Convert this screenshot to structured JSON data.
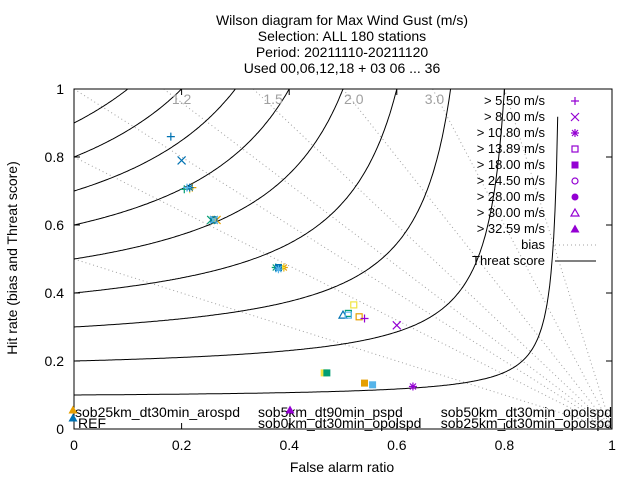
{
  "chart_data": {
    "type": "scatter",
    "title_lines": [
      "Wilson diagram  for Max Wind Gust (m/s)",
      "Selection: ALL    180 stations",
      "Period: 20211110-20211120",
      "Used 00,06,12,18 + 03 06 ... 36"
    ],
    "xlabel": "False alarm ratio",
    "ylabel": "Hit rate (bias and Threat score)",
    "xlim": [
      0,
      1
    ],
    "ylim": [
      0,
      1
    ],
    "x_ticks": [
      "0",
      "0.2",
      "0.4",
      "0.6",
      "0.8",
      "1"
    ],
    "y_ticks": [
      "0",
      "0.2",
      "0.4",
      "0.6",
      "0.8",
      "1"
    ],
    "bias_values": [
      1.2,
      1.5,
      2.0,
      3.0
    ],
    "bias_labels": [
      "1.2",
      "1.5",
      "2.0",
      "3.0"
    ],
    "bias_lines_extra": [
      0.5,
      0.8,
      1.0,
      1.2,
      1.5,
      2.0,
      3.0,
      5.0
    ],
    "threat_scores": [
      0.1,
      0.2,
      0.3,
      0.4,
      0.5,
      0.6,
      0.7,
      0.8,
      0.9
    ],
    "legend": {
      "thresholds": [
        "> 5.50 m/s",
        "> 8.00 m/s",
        "> 10.80 m/s",
        "> 13.89 m/s",
        "> 18.00 m/s",
        "> 24.50 m/s",
        "> 28.00 m/s",
        "> 30.00 m/s",
        "> 32.59 m/s"
      ],
      "threshold_markers": [
        "plus",
        "cross",
        "star",
        "square-open",
        "square",
        "circle-open",
        "circle",
        "triangle-open",
        "triangle"
      ],
      "bias_label": "bias",
      "threat_label": "Threat score"
    },
    "series": [
      {
        "name": "sob25km_dt30min_arospd",
        "color": "#e69f00",
        "points": [
          [
            0.22,
            0.71
          ],
          [
            0.265,
            0.615
          ],
          [
            0.39,
            0.475
          ],
          [
            0.53,
            0.33
          ],
          [
            0.54,
            0.135
          ]
        ]
      },
      {
        "name": "sob5km_dt90min_pspd",
        "color": "#f0e442",
        "points": [
          [
            0.215,
            0.705
          ],
          [
            0.26,
            0.615
          ],
          [
            0.385,
            0.475
          ],
          [
            0.52,
            0.365
          ],
          [
            0.465,
            0.165
          ]
        ]
      },
      {
        "name": "sob0km_dt30min_opolspd",
        "color": "#009e73",
        "points": [
          [
            0.205,
            0.705
          ],
          [
            0.255,
            0.615
          ],
          [
            0.375,
            0.475
          ],
          [
            0.51,
            0.34
          ],
          [
            0.47,
            0.165
          ]
        ]
      },
      {
        "name": "sob50km_dt30min_opolspd",
        "color": "#0072b2",
        "points": [
          [
            0.18,
            0.86
          ],
          [
            0.2,
            0.79
          ],
          [
            0.215,
            0.71
          ],
          [
            0.26,
            0.615
          ],
          [
            0.38,
            0.475
          ],
          [
            0.5,
            0.335
          ]
        ]
      },
      {
        "name": "sob25km_dt30min_opolspd",
        "color": "#56b4e9",
        "points": [
          [
            0.21,
            0.71
          ],
          [
            0.26,
            0.615
          ],
          [
            0.38,
            0.47
          ],
          [
            0.51,
            0.335
          ],
          [
            0.555,
            0.13
          ]
        ]
      },
      {
        "name": "REF",
        "color": "#9400d3",
        "points": [
          [
            0.54,
            0.325
          ],
          [
            0.6,
            0.305
          ],
          [
            0.63,
            0.125
          ]
        ]
      }
    ],
    "ref_label": "REF",
    "model_labels": [
      {
        "text": "sob25km_dt30min_arospd",
        "color": "#e69f00"
      },
      {
        "text": "sob5km_dt90min_pspd",
        "color": "#f0e442"
      },
      {
        "text": "sob50km_dt30min_opolspd",
        "color": "#0072b2"
      },
      {
        "text": "sob0km_dt30min_opolspd",
        "color": "#009e73"
      },
      {
        "text": "sob25km_dt30min_opolspd",
        "color": "#56b4e9"
      }
    ]
  }
}
